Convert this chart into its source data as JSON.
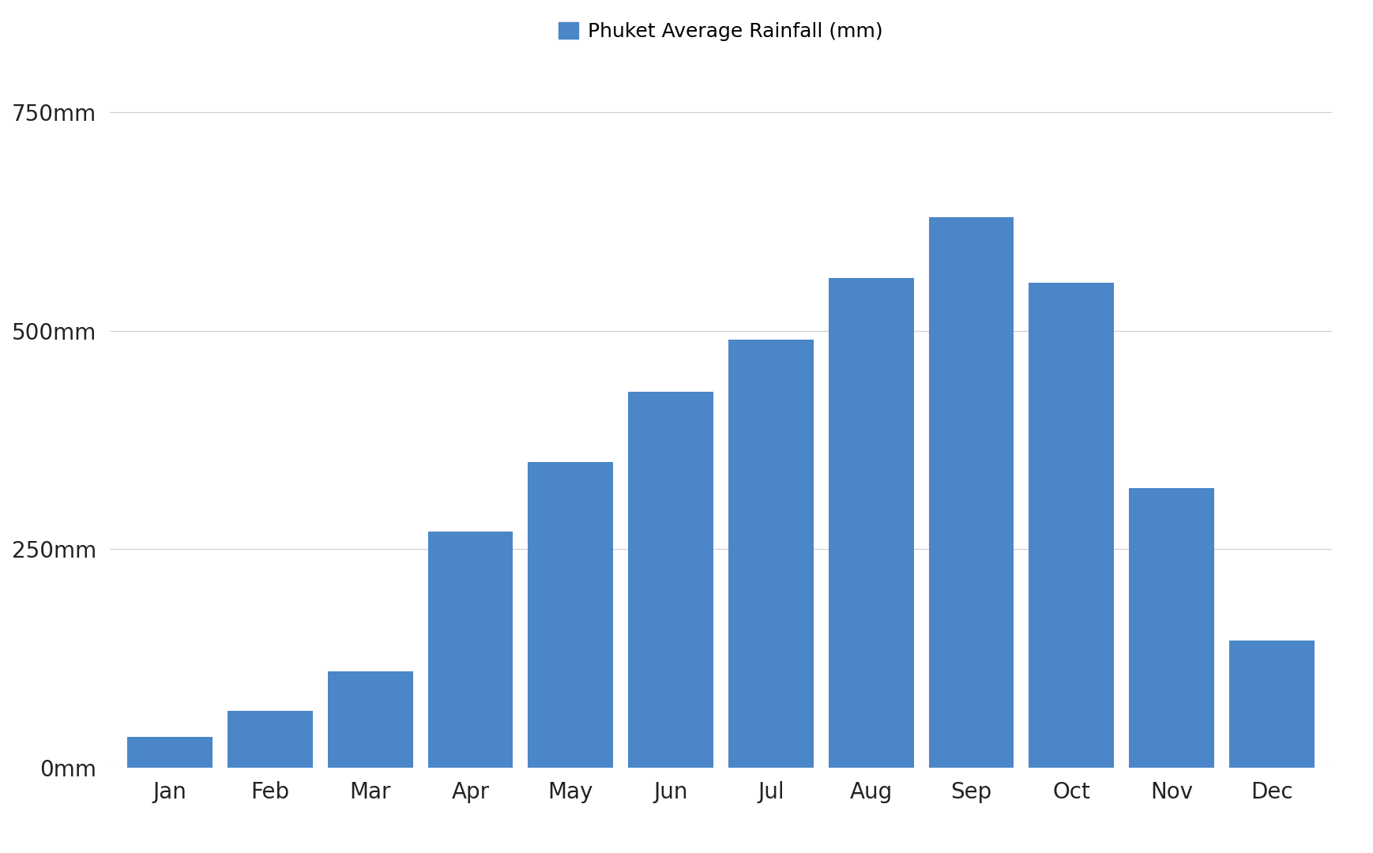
{
  "months": [
    "Jan",
    "Feb",
    "Mar",
    "Apr",
    "May",
    "Jun",
    "Jul",
    "Aug",
    "Sep",
    "Oct",
    "Nov",
    "Dec"
  ],
  "values": [
    35,
    65,
    110,
    270,
    350,
    430,
    490,
    560,
    630,
    555,
    320,
    145
  ],
  "bar_color": "#4a86c8",
  "background_color": "#ffffff",
  "legend_label": "Phuket Average Rainfall (mm)",
  "yticks": [
    0,
    250,
    500,
    750
  ],
  "ytick_labels": [
    "0mm",
    "250mm",
    "500mm",
    "750mm"
  ],
  "ylim": [
    0,
    800
  ],
  "tick_fontsize": 20,
  "legend_fontsize": 18,
  "grid_color": "#cccccc",
  "bar_width": 0.85
}
